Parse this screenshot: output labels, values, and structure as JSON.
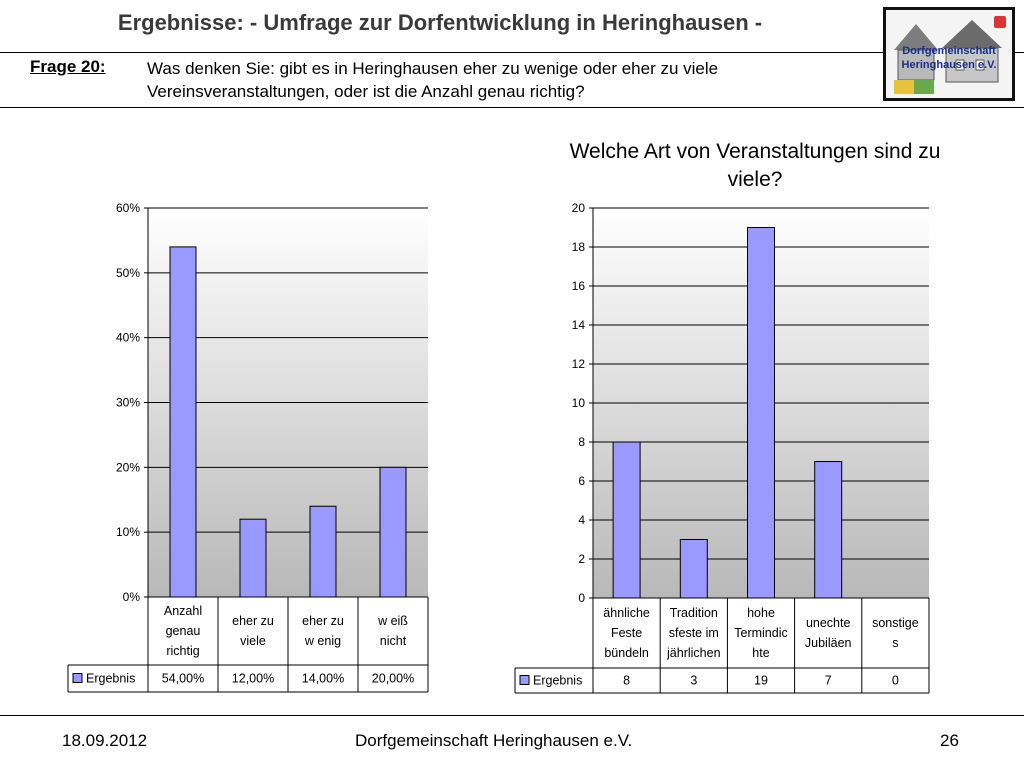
{
  "header": {
    "title": "Ergebnisse: - Umfrage zur Dorfentwicklung in Heringhausen -",
    "question_label": "Frage 20:",
    "question_text": "Was denken Sie: gibt es in Heringhausen eher zu wenige oder eher zu viele Vereinsveranstaltungen, oder ist die Anzahl genau richtig?",
    "logo_text_line1": "Dorfgemeinschaft",
    "logo_text_line2": "Heringhausen e.V."
  },
  "footer": {
    "date": "18.09.2012",
    "organization": "Dorfgemeinschaft Heringhausen e.V.",
    "page": "26"
  },
  "colors": {
    "bar": "#9999ff",
    "bar_stroke": "#000000",
    "plot_top": "#ffffff",
    "plot_bottom": "#b8b8b8"
  },
  "chart_data": [
    {
      "type": "bar",
      "title": "",
      "categories": [
        [
          "Anzahl",
          "genau",
          "richtig"
        ],
        [
          "eher zu",
          "viele"
        ],
        [
          "eher zu",
          "w enig"
        ],
        [
          "w eiß",
          "nicht"
        ]
      ],
      "series": [
        {
          "name": "Ergebnis",
          "values": [
            54,
            12,
            14,
            20
          ],
          "labels": [
            "54,00%",
            "12,00%",
            "14,00%",
            "20,00%"
          ]
        }
      ],
      "ylim": [
        0,
        60
      ],
      "yticks": [
        "0%",
        "10%",
        "20%",
        "30%",
        "40%",
        "50%",
        "60%"
      ],
      "grid": true,
      "legend": "data-table"
    },
    {
      "type": "bar",
      "title": "Welche Art von Veranstaltungen sind zu viele?",
      "categories": [
        [
          "ähnliche",
          "Feste",
          "bündeln"
        ],
        [
          "Tradition",
          "sfeste im",
          "jährlichen"
        ],
        [
          "hohe",
          "Termindic",
          "hte"
        ],
        [
          "unechte",
          "Jubiläen"
        ],
        [
          "sonstige",
          "s"
        ]
      ],
      "series": [
        {
          "name": "Ergebnis",
          "values": [
            8,
            3,
            19,
            7,
            0
          ],
          "labels": [
            "8",
            "3",
            "19",
            "7",
            "0"
          ]
        }
      ],
      "ylim": [
        0,
        20
      ],
      "yticks": [
        "0",
        "2",
        "4",
        "6",
        "8",
        "10",
        "12",
        "14",
        "16",
        "18",
        "20"
      ],
      "grid": true,
      "legend": "data-table"
    }
  ]
}
